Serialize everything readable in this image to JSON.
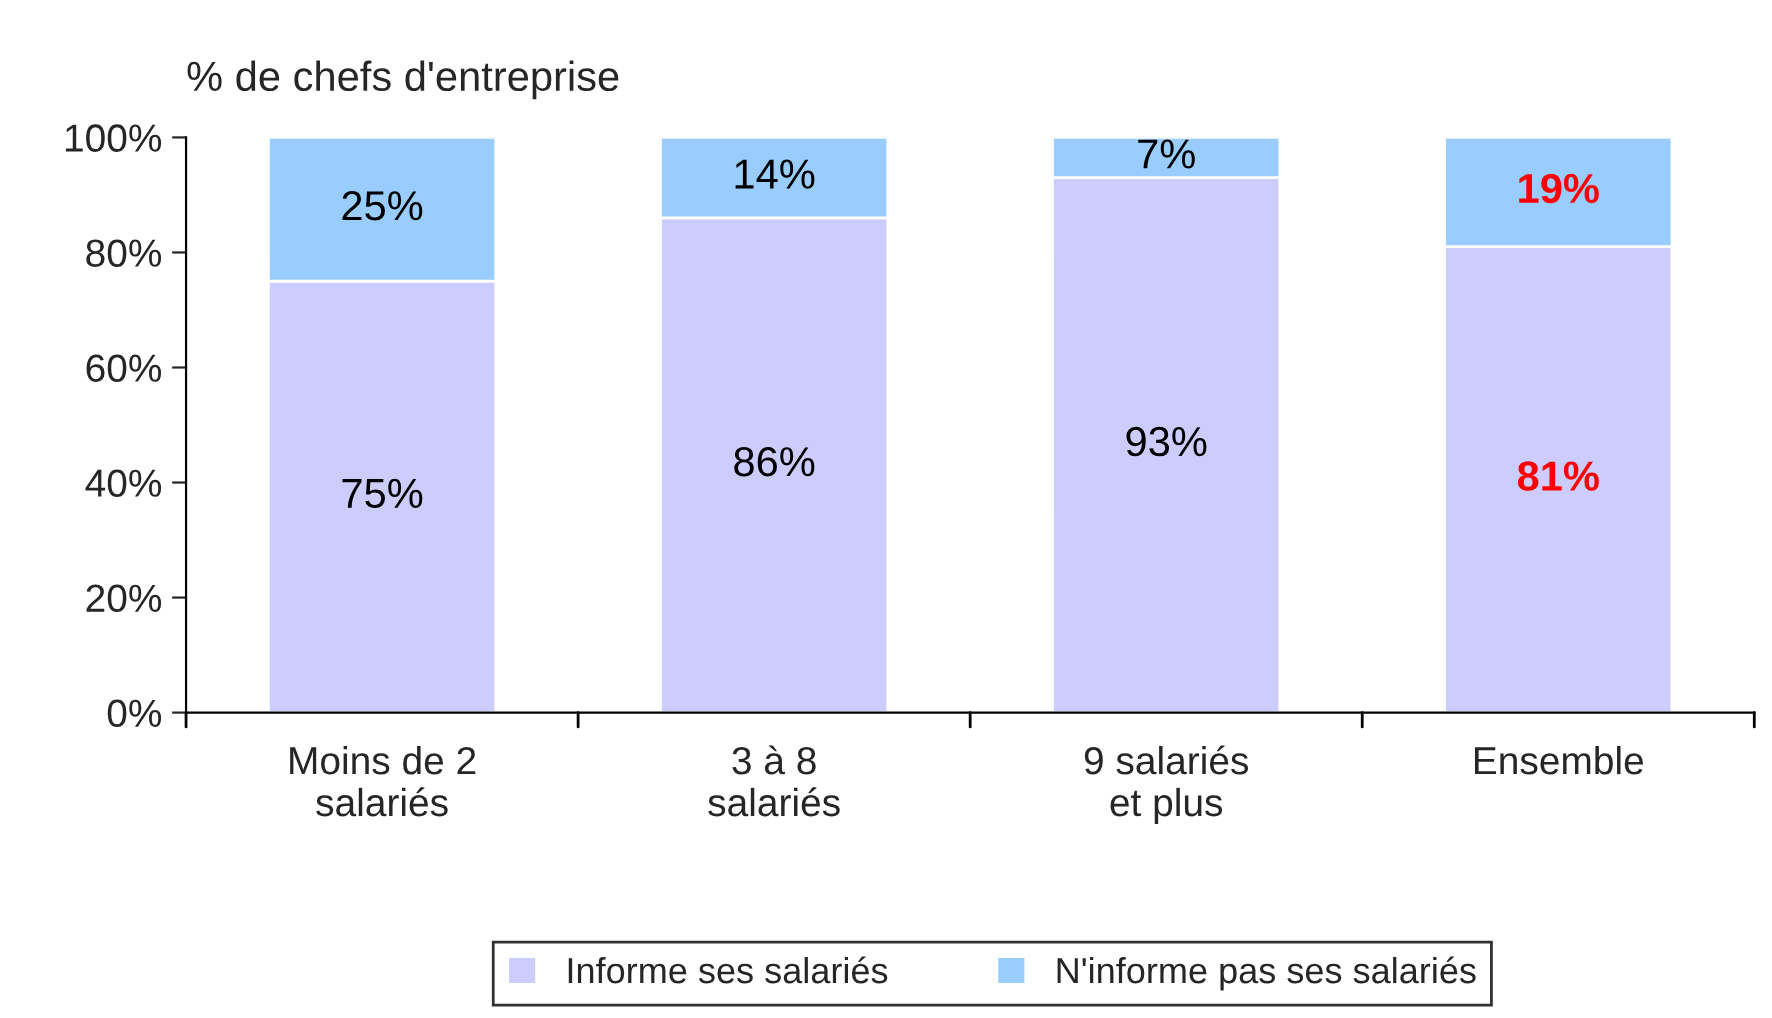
{
  "chart_data": {
    "type": "bar",
    "stacked": true,
    "ylabel": "% de chefs d'entreprise",
    "categories": [
      "Moins de 2\nsalariés",
      "3 à 8\nsalariés",
      "9 salariés\net plus",
      "Ensemble"
    ],
    "series": [
      {
        "name": "Informe ses salariés",
        "color": "#ccccff",
        "values": [
          75,
          86,
          93,
          81
        ],
        "value_labels": [
          "75%",
          "86%",
          "93%",
          "81%"
        ]
      },
      {
        "name": "N'informe pas ses salariés",
        "color": "#99ccff",
        "values": [
          25,
          14,
          7,
          19
        ],
        "value_labels": [
          "25%",
          "14%",
          "7%",
          "19%"
        ]
      }
    ],
    "ylim": [
      0,
      100
    ],
    "yticks": [
      {
        "value": 0,
        "label": "0%"
      },
      {
        "value": 20,
        "label": "20%"
      },
      {
        "value": 40,
        "label": "40%"
      },
      {
        "value": 60,
        "label": "60%"
      },
      {
        "value": 80,
        "label": "80%"
      },
      {
        "value": 100,
        "label": "100%"
      }
    ],
    "grid": false,
    "legend": "bottom"
  }
}
